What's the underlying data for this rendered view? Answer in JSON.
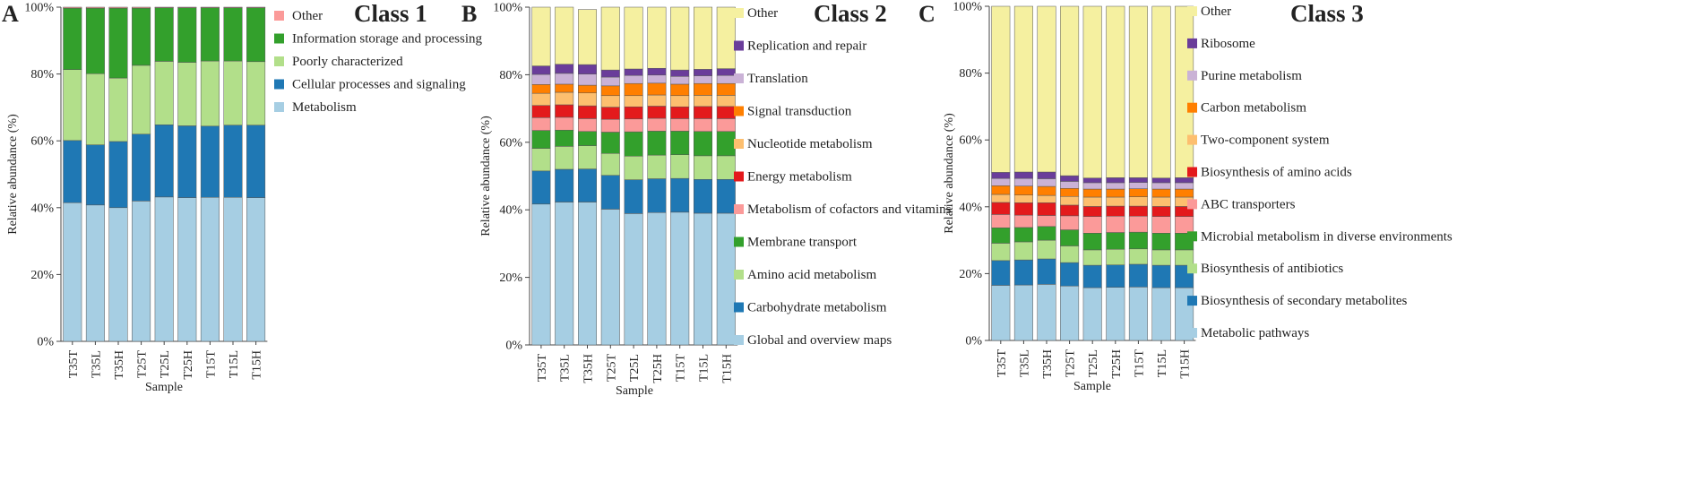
{
  "figure": {
    "y_axis_label": "Relative abundance (%)",
    "x_axis_label": "Sample",
    "y_ticks": [
      "0%",
      "20%",
      "40%",
      "60%",
      "80%",
      "100%"
    ]
  },
  "chart_data": [
    {
      "type": "bar",
      "stacked": true,
      "panel_letter": "A",
      "title": "Class 1",
      "xlabel": "Sample",
      "ylabel": "Relative abundance (%)",
      "ylim": [
        0,
        100
      ],
      "categories": [
        "T35T",
        "T35L",
        "T35H",
        "T25T",
        "T25L",
        "T25H",
        "T15T",
        "T15L",
        "T15H"
      ],
      "legend_order": [
        "Other",
        "Information storage and processing",
        "Poorly characterized",
        "Cellular processes and signaling",
        "Metabolism"
      ],
      "series": [
        {
          "name": "Metabolism",
          "color": "#a6cee3",
          "values": [
            41.5,
            40.8,
            40.0,
            42.0,
            43.2,
            43.0,
            43.1,
            43.1,
            43.0
          ]
        },
        {
          "name": "Cellular processes and signaling",
          "color": "#1f78b4",
          "values": [
            18.6,
            18.0,
            19.8,
            20.0,
            21.6,
            21.5,
            21.3,
            21.6,
            21.7
          ]
        },
        {
          "name": "Poorly characterized",
          "color": "#b2df8a",
          "values": [
            21.2,
            21.3,
            19.0,
            20.6,
            19.0,
            19.0,
            19.5,
            19.2,
            19.0
          ]
        },
        {
          "name": "Information storage and processing",
          "color": "#33a02c",
          "values": [
            18.4,
            19.6,
            20.9,
            17.1,
            16.0,
            16.3,
            15.9,
            15.9,
            16.1
          ]
        },
        {
          "name": "Other",
          "color": "#fb9a99",
          "values": [
            0.3,
            0.3,
            0.3,
            0.3,
            0.2,
            0.2,
            0.2,
            0.2,
            0.2
          ]
        }
      ]
    },
    {
      "type": "bar",
      "stacked": true,
      "panel_letter": "B",
      "title": "Class 2",
      "xlabel": "Sample",
      "ylabel": "Relative abundance (%)",
      "ylim": [
        0,
        100
      ],
      "categories": [
        "T35T",
        "T35L",
        "T35H",
        "T25T",
        "T25L",
        "T25H",
        "T15T",
        "T15L",
        "T15H"
      ],
      "legend_order": [
        "Other",
        "Replication and repair",
        "Translation",
        "Signal transduction",
        "Nucleotide metabolism",
        "Energy metabolism",
        "Metabolism of cofactors and vitamins",
        "Membrane transport",
        "Amino acid metabolism",
        "Carbohydrate metabolism",
        "Global and overview maps"
      ],
      "series": [
        {
          "name": "Global and overview maps",
          "color": "#a6cee3",
          "values": [
            41.7,
            42.3,
            42.3,
            40.2,
            38.9,
            39.2,
            39.3,
            39.0,
            39.0
          ]
        },
        {
          "name": "Carbohydrate metabolism",
          "color": "#1f78b4",
          "values": [
            9.8,
            9.7,
            9.8,
            10.0,
            10.0,
            10.0,
            10.0,
            10.0,
            10.0
          ]
        },
        {
          "name": "Amino acid metabolism",
          "color": "#b2df8a",
          "values": [
            6.7,
            6.8,
            6.9,
            6.5,
            7.0,
            7.0,
            7.0,
            7.0,
            7.0
          ]
        },
        {
          "name": "Membrane transport",
          "color": "#33a02c",
          "values": [
            5.3,
            4.8,
            4.2,
            6.3,
            7.2,
            7.1,
            7.0,
            7.2,
            7.2
          ]
        },
        {
          "name": "Metabolism of cofactors and vitamins",
          "color": "#fb9a99",
          "values": [
            3.8,
            3.8,
            3.8,
            3.8,
            3.8,
            3.8,
            3.7,
            3.8,
            3.8
          ]
        },
        {
          "name": "Energy metabolism",
          "color": "#e31a1c",
          "values": [
            3.6,
            3.7,
            3.8,
            3.6,
            3.6,
            3.6,
            3.5,
            3.6,
            3.6
          ]
        },
        {
          "name": "Nucleotide metabolism",
          "color": "#fdbf6f",
          "values": [
            3.6,
            3.7,
            3.8,
            3.4,
            3.3,
            3.3,
            3.3,
            3.3,
            3.3
          ]
        },
        {
          "name": "Signal transduction",
          "color": "#ff7f00",
          "values": [
            2.6,
            2.4,
            2.3,
            2.9,
            3.6,
            3.5,
            3.4,
            3.5,
            3.5
          ]
        },
        {
          "name": "Translation",
          "color": "#cab2d6",
          "values": [
            3.0,
            3.2,
            3.3,
            2.6,
            2.4,
            2.4,
            2.3,
            2.3,
            2.4
          ]
        },
        {
          "name": "Replication and repair",
          "color": "#6a3d9a",
          "values": [
            2.5,
            2.7,
            2.8,
            2.1,
            1.9,
            2.0,
            1.9,
            1.9,
            2.0
          ]
        },
        {
          "name": "Other",
          "color": "#f5f0a0",
          "values": [
            17.4,
            16.9,
            16.3,
            18.6,
            18.3,
            18.1,
            18.6,
            18.4,
            18.2
          ]
        }
      ]
    },
    {
      "type": "bar",
      "stacked": true,
      "panel_letter": "C",
      "title": "Class 3",
      "xlabel": "Sample",
      "ylabel": "Relative abundance (%)",
      "ylim": [
        0,
        100
      ],
      "categories": [
        "T35T",
        "T35L",
        "T35H",
        "T25T",
        "T25L",
        "T25H",
        "T15T",
        "T15L",
        "T15H"
      ],
      "legend_order": [
        "Other",
        "Ribosome",
        "Purine metabolism",
        "Carbon metabolism",
        "Two-component system",
        "Biosynthesis of amino acids",
        "ABC transporters",
        "Microbial metabolism in diverse environments",
        "Biosynthesis of antibiotics",
        "Biosynthesis of secondary metabolites",
        "Metabolic pathways"
      ],
      "series": [
        {
          "name": "Metabolic pathways",
          "color": "#a6cee3",
          "values": [
            16.5,
            16.6,
            16.8,
            16.3,
            15.8,
            15.9,
            16.0,
            15.8,
            15.8
          ]
        },
        {
          "name": "Biosynthesis of secondary metabolites",
          "color": "#1f78b4",
          "values": [
            7.4,
            7.5,
            7.6,
            7.0,
            6.7,
            6.7,
            6.8,
            6.7,
            6.7
          ]
        },
        {
          "name": "Biosynthesis of antibiotics",
          "color": "#b2df8a",
          "values": [
            5.2,
            5.4,
            5.6,
            5.0,
            4.6,
            4.7,
            4.6,
            4.6,
            4.6
          ]
        },
        {
          "name": "Microbial metabolism in diverse environments",
          "color": "#33a02c",
          "values": [
            4.6,
            4.3,
            4.1,
            4.8,
            5.0,
            5.0,
            5.0,
            5.0,
            5.0
          ]
        },
        {
          "name": "ABC transporters",
          "color": "#fb9a99",
          "values": [
            4.0,
            3.7,
            3.3,
            4.2,
            5.0,
            4.9,
            4.8,
            5.0,
            5.0
          ]
        },
        {
          "name": "Biosynthesis of amino acids",
          "color": "#e31a1c",
          "values": [
            3.6,
            3.7,
            3.8,
            3.2,
            3.0,
            3.0,
            3.0,
            3.0,
            3.0
          ]
        },
        {
          "name": "Two-component system",
          "color": "#fdbf6f",
          "values": [
            2.4,
            2.3,
            2.2,
            2.6,
            2.8,
            2.7,
            2.8,
            2.8,
            2.8
          ]
        },
        {
          "name": "Carbon metabolism",
          "color": "#ff7f00",
          "values": [
            2.6,
            2.7,
            2.7,
            2.4,
            2.4,
            2.4,
            2.4,
            2.4,
            2.4
          ]
        },
        {
          "name": "Purine metabolism",
          "color": "#cab2d6",
          "values": [
            2.2,
            2.3,
            2.3,
            2.1,
            1.9,
            1.9,
            1.9,
            1.9,
            1.9
          ]
        },
        {
          "name": "Ribosome",
          "color": "#6a3d9a",
          "values": [
            1.8,
            1.9,
            2.0,
            1.7,
            1.4,
            1.5,
            1.4,
            1.4,
            1.5
          ]
        },
        {
          "name": "Other",
          "color": "#f5f0a0",
          "values": [
            49.7,
            49.6,
            49.6,
            50.7,
            51.4,
            51.3,
            51.3,
            51.4,
            51.3
          ]
        }
      ]
    }
  ]
}
